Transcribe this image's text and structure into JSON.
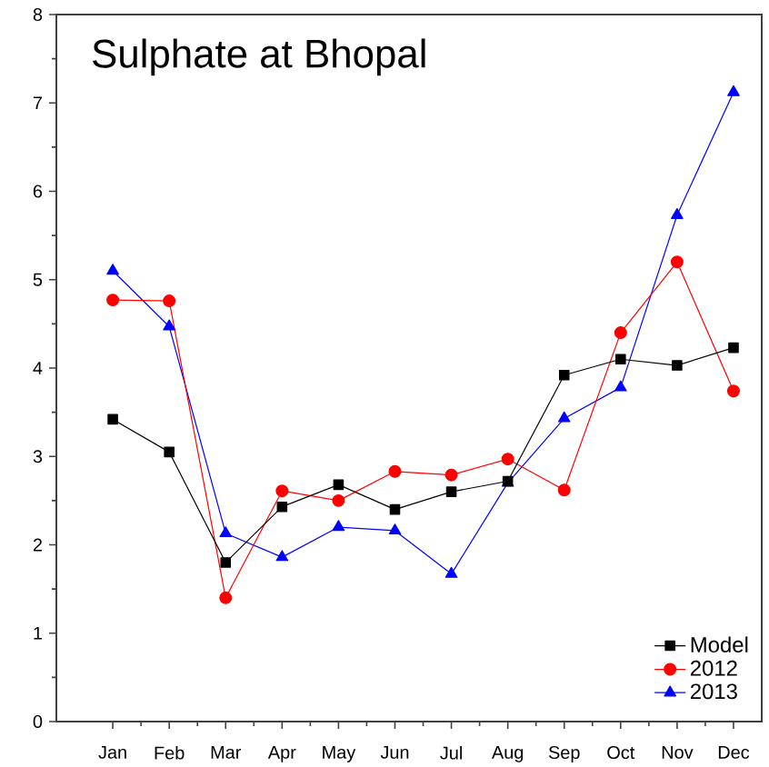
{
  "chart_data": {
    "type": "line",
    "title": "Sulphate at Bhopal",
    "categories": [
      "Jan",
      "Feb",
      "Mar",
      "Apr",
      "May",
      "Jun",
      "Jul",
      "Aug",
      "Sep",
      "Oct",
      "Nov",
      "Dec"
    ],
    "series": [
      {
        "name": "Model",
        "color": "#000000",
        "marker": "square",
        "values": [
          3.42,
          3.05,
          1.8,
          2.43,
          2.68,
          2.4,
          2.6,
          2.72,
          3.92,
          4.1,
          4.03,
          4.23
        ]
      },
      {
        "name": "2012",
        "color": "#ff0000",
        "marker": "circle",
        "values": [
          4.77,
          4.76,
          1.4,
          2.61,
          2.5,
          2.83,
          2.79,
          2.97,
          2.62,
          4.4,
          5.2,
          3.74
        ]
      },
      {
        "name": "2013",
        "color": "#0000ff",
        "marker": "triangle",
        "values": [
          5.1,
          4.47,
          2.13,
          1.86,
          2.2,
          2.16,
          1.67,
          2.7,
          3.43,
          3.78,
          5.73,
          7.12
        ]
      }
    ],
    "ylim": [
      0,
      8
    ],
    "yticks": [
      0,
      1,
      2,
      3,
      4,
      5,
      6,
      7,
      8
    ],
    "legend": "bottom right",
    "grid": false
  }
}
